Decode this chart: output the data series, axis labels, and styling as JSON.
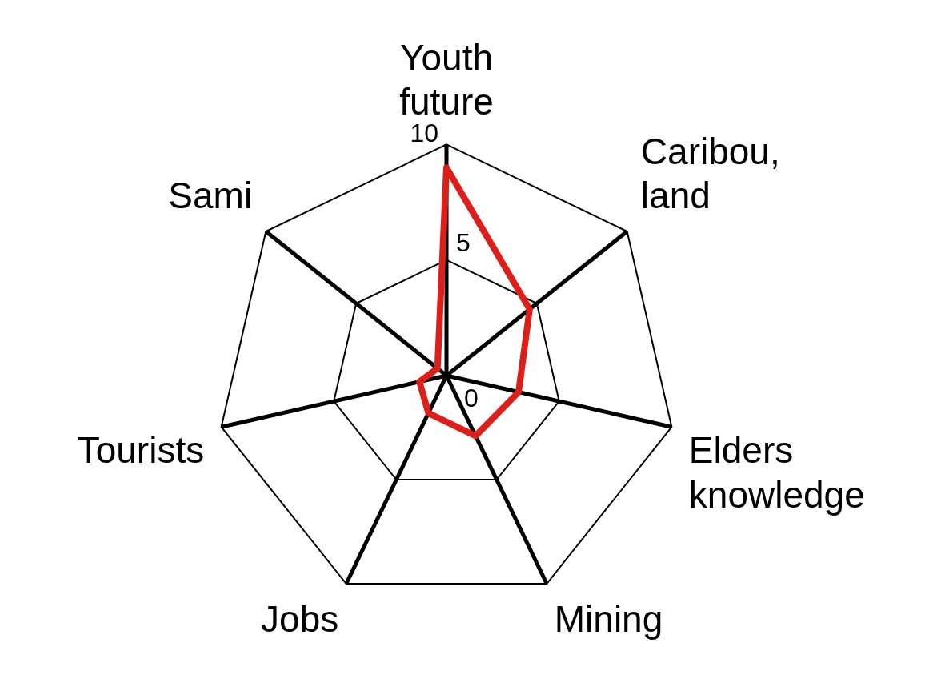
{
  "chart_data": {
    "type": "radar",
    "categories": [
      "Youth future",
      "Caribou, land",
      "Elders knowledge",
      "Mining",
      "Jobs",
      "Tourists",
      "Sami"
    ],
    "series": [
      {
        "color": "#dd1f1a",
        "values": [
          9,
          4.6,
          3.2,
          2.9,
          1.8,
          1.2,
          0.5
        ]
      }
    ],
    "ylim": [
      0,
      10
    ],
    "yticks": [
      0,
      5,
      10
    ],
    "grid": true,
    "legend": false,
    "marker": "none"
  }
}
